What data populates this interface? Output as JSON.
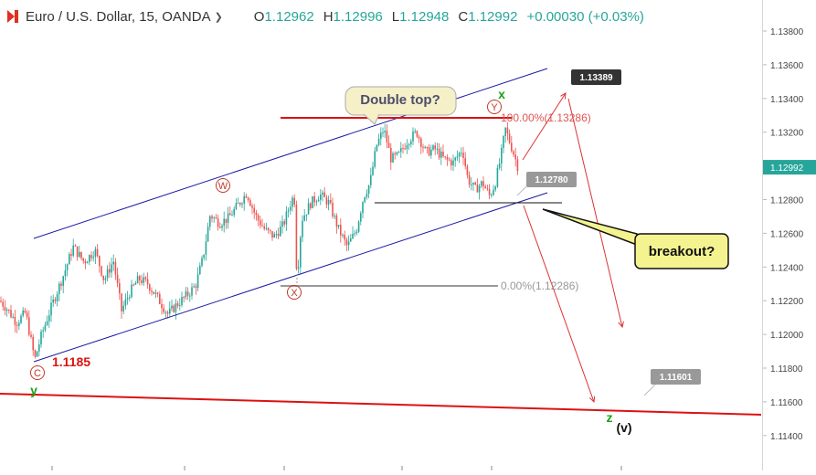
{
  "header": {
    "title": "Euro / U.S. Dollar, 15, OANDA",
    "o_label": "O",
    "o_value": "1.12962",
    "h_label": "H",
    "h_value": "1.12996",
    "l_label": "L",
    "l_value": "1.12948",
    "c_label": "C",
    "c_value": "1.12992",
    "change": "+0.00030 (+0.03%)",
    "up_color": "#26a69a",
    "icon": "tradingview-logo-icon",
    "dropdown_icon": "chevron-down-icon"
  },
  "chart_data": {
    "type": "candlestick",
    "title": "Euro / U.S. Dollar, 15, OANDA",
    "ylim": [
      1.113,
      1.14
    ],
    "y_ticks": [
      "1.13800",
      "1.13600",
      "1.13400",
      "1.13200",
      "1.13000",
      "1.12800",
      "1.12600",
      "1.12400",
      "1.12200",
      "1.12000",
      "1.11800",
      "1.11600",
      "1.11400"
    ],
    "last_price": "1.12992",
    "path": [
      [
        0,
        1.122
      ],
      [
        8,
        1.1215
      ],
      [
        18,
        1.1207
      ],
      [
        28,
        1.1213
      ],
      [
        38,
        1.1185
      ],
      [
        45,
        1.1199
      ],
      [
        52,
        1.121
      ],
      [
        60,
        1.1222
      ],
      [
        70,
        1.1236
      ],
      [
        80,
        1.1252
      ],
      [
        92,
        1.1243
      ],
      [
        104,
        1.125
      ],
      [
        114,
        1.1232
      ],
      [
        124,
        1.1244
      ],
      [
        133,
        1.1214
      ],
      [
        142,
        1.1225
      ],
      [
        152,
        1.1233
      ],
      [
        162,
        1.123
      ],
      [
        172,
        1.1222
      ],
      [
        184,
        1.1212
      ],
      [
        194,
        1.1218
      ],
      [
        204,
        1.1223
      ],
      [
        214,
        1.1229
      ],
      [
        222,
        1.1245
      ],
      [
        230,
        1.1271
      ],
      [
        240,
        1.1266
      ],
      [
        250,
        1.1269
      ],
      [
        262,
        1.1278
      ],
      [
        270,
        1.1284
      ],
      [
        280,
        1.127
      ],
      [
        290,
        1.1262
      ],
      [
        300,
        1.1258
      ],
      [
        310,
        1.1265
      ],
      [
        318,
        1.1278
      ],
      [
        322,
        1.1283
      ],
      [
        325,
        1.1231
      ],
      [
        330,
        1.1268
      ],
      [
        340,
        1.1278
      ],
      [
        350,
        1.1283
      ],
      [
        360,
        1.1278
      ],
      [
        370,
        1.1263
      ],
      [
        380,
        1.1252
      ],
      [
        390,
        1.1262
      ],
      [
        398,
        1.1282
      ],
      [
        405,
        1.129
      ],
      [
        412,
        1.1312
      ],
      [
        420,
        1.1322
      ],
      [
        428,
        1.1304
      ],
      [
        436,
        1.1306
      ],
      [
        446,
        1.1315
      ],
      [
        456,
        1.132
      ],
      [
        466,
        1.1308
      ],
      [
        476,
        1.131
      ],
      [
        486,
        1.1304
      ],
      [
        496,
        1.1302
      ],
      [
        506,
        1.131
      ],
      [
        512,
        1.1292
      ],
      [
        520,
        1.1286
      ],
      [
        528,
        1.129
      ],
      [
        536,
        1.1282
      ],
      [
        542,
        1.129
      ],
      [
        548,
        1.1305
      ],
      [
        553,
        1.1322
      ],
      [
        558,
        1.1314
      ],
      [
        563,
        1.1306
      ],
      [
        568,
        1.1297
      ]
    ],
    "annotations": {
      "double_top": "Double top?",
      "breakout": "breakout?",
      "fib_100": "100.00%(1.13286)",
      "fib_0": "0.00%(1.12286)",
      "label_w": "W",
      "label_x": "X",
      "label_y": "Y",
      "label_c": "C",
      "label_x_green": "x",
      "label_y_green": "y",
      "label_z_green": "z",
      "label_v": "(v)",
      "price_low": "1.1185",
      "target_1": "1.13389",
      "target_2": "1.12780",
      "target_3": "1.11601"
    },
    "grid": false,
    "colors": {
      "up": "#26a69a",
      "down": "#ef5350",
      "channel": "#1a1aa6",
      "resistance": "#dd1111",
      "support": "#dd1111",
      "projection": "#dd3333",
      "elliott_red": "#c0392b",
      "elliott_green": "#19a319"
    }
  }
}
